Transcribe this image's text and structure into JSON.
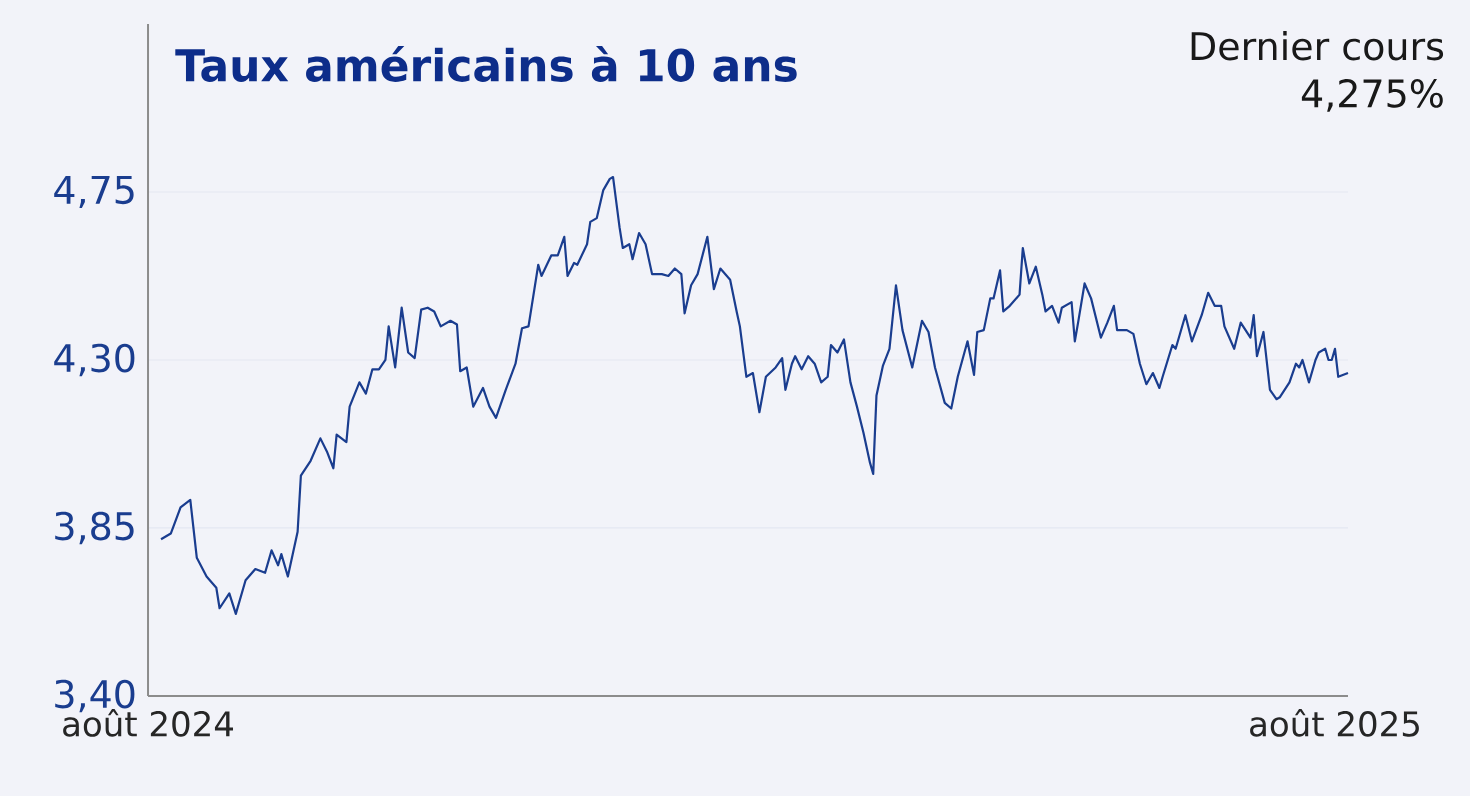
{
  "chart_data": {
    "type": "line",
    "title": "Taux américains à 10 ans",
    "annotations": [
      "Dernier cours",
      "4,275%"
    ],
    "x": [
      "2024-08-05",
      "2024-08-08",
      "2024-08-11",
      "2024-08-14",
      "2024-08-16",
      "2024-08-19",
      "2024-08-22",
      "2024-08-23",
      "2024-08-26",
      "2024-08-28",
      "2024-08-31",
      "2024-09-03",
      "2024-09-06",
      "2024-09-08",
      "2024-09-10",
      "2024-09-11",
      "2024-09-13",
      "2024-09-16",
      "2024-09-17",
      "2024-09-20",
      "2024-09-23",
      "2024-09-25",
      "2024-09-27",
      "2024-09-28",
      "2024-10-01",
      "2024-10-02",
      "2024-10-05",
      "2024-10-07",
      "2024-10-09",
      "2024-10-11",
      "2024-10-13",
      "2024-10-14",
      "2024-10-16",
      "2024-10-18",
      "2024-10-20",
      "2024-10-22",
      "2024-10-24",
      "2024-10-26",
      "2024-10-28",
      "2024-10-30",
      "2024-11-02",
      "2024-11-04",
      "2024-11-05",
      "2024-11-07",
      "2024-11-09",
      "2024-11-12",
      "2024-11-14",
      "2024-11-16",
      "2024-11-19",
      "2024-11-22",
      "2024-11-24",
      "2024-11-26",
      "2024-11-29",
      "2024-11-30",
      "2024-12-03",
      "2024-12-05",
      "2024-12-07",
      "2024-12-08",
      "2024-12-10",
      "2024-12-11",
      "2024-12-14",
      "2024-12-15",
      "2024-12-17",
      "2024-12-19",
      "2024-12-21",
      "2024-12-22",
      "2024-12-24",
      "2024-12-25",
      "2024-12-27",
      "2024-12-28",
      "2024-12-30",
      "2025-01-01",
      "2025-01-03",
      "2025-01-06",
      "2025-01-08",
      "2025-01-10",
      "2025-01-12",
      "2025-01-13",
      "2025-01-15",
      "2025-01-17",
      "2025-01-20",
      "2025-01-21",
      "2025-01-22",
      "2025-01-24",
      "2025-01-27",
      "2025-01-29",
      "2025-01-30",
      "2025-02-01",
      "2025-02-03",
      "2025-02-05",
      "2025-02-07",
      "2025-02-10",
      "2025-02-12",
      "2025-02-13",
      "2025-02-15",
      "2025-02-16",
      "2025-02-18",
      "2025-02-20",
      "2025-02-22",
      "2025-02-24",
      "2025-02-26",
      "2025-02-27",
      "2025-03-01",
      "2025-03-03",
      "2025-03-05",
      "2025-03-07",
      "2025-03-09",
      "2025-03-11",
      "2025-03-12",
      "2025-03-13",
      "2025-03-15",
      "2025-03-17",
      "2025-03-19",
      "2025-03-21",
      "2025-03-24",
      "2025-03-27",
      "2025-03-29",
      "2025-03-31",
      "2025-04-03",
      "2025-04-05",
      "2025-04-07",
      "2025-04-10",
      "2025-04-12",
      "2025-04-13",
      "2025-04-15",
      "2025-04-17",
      "2025-04-18",
      "2025-04-20",
      "2025-04-21",
      "2025-04-23",
      "2025-04-26",
      "2025-04-27",
      "2025-04-29",
      "2025-05-01",
      "2025-05-03",
      "2025-05-04",
      "2025-05-06",
      "2025-05-08",
      "2025-05-09",
      "2025-05-12",
      "2025-05-13",
      "2025-05-14",
      "2025-05-16",
      "2025-05-18",
      "2025-05-21",
      "2025-05-23",
      "2025-05-25",
      "2025-05-26",
      "2025-05-29",
      "2025-05-31",
      "2025-06-02",
      "2025-06-04",
      "2025-06-06",
      "2025-06-08",
      "2025-06-09",
      "2025-06-12",
      "2025-06-13",
      "2025-06-16",
      "2025-06-18",
      "2025-06-21",
      "2025-06-23",
      "2025-06-25",
      "2025-06-27",
      "2025-06-28",
      "2025-07-01",
      "2025-07-03",
      "2025-07-06",
      "2025-07-07",
      "2025-07-08",
      "2025-07-10",
      "2025-07-12",
      "2025-07-14",
      "2025-07-15",
      "2025-07-18",
      "2025-07-20",
      "2025-07-21",
      "2025-07-22",
      "2025-07-24",
      "2025-07-26",
      "2025-07-27",
      "2025-07-29",
      "2025-07-30",
      "2025-07-31",
      "2025-08-01",
      "2025-08-02",
      "2025-08-05"
    ],
    "series": [
      {
        "color": "#1a3d8f",
        "values": [
          3.82,
          3.835,
          3.905,
          3.925,
          3.77,
          3.72,
          3.69,
          3.635,
          3.675,
          3.62,
          3.71,
          3.74,
          3.73,
          3.79,
          3.75,
          3.78,
          3.72,
          3.84,
          3.99,
          4.03,
          4.09,
          4.055,
          4.01,
          4.1,
          4.08,
          4.175,
          4.24,
          4.21,
          4.275,
          4.275,
          4.3,
          4.39,
          4.28,
          4.44,
          4.32,
          4.305,
          4.435,
          4.44,
          4.43,
          4.39,
          4.405,
          4.395,
          4.27,
          4.28,
          4.175,
          4.225,
          4.175,
          4.145,
          4.22,
          4.29,
          4.385,
          4.39,
          4.555,
          4.525,
          4.58,
          4.58,
          4.63,
          4.525,
          4.56,
          4.555,
          4.61,
          4.67,
          4.68,
          4.755,
          4.785,
          4.79,
          4.655,
          4.6,
          4.61,
          4.57,
          4.64,
          4.61,
          4.53,
          4.53,
          4.525,
          4.545,
          4.53,
          4.425,
          4.5,
          4.53,
          4.63,
          4.56,
          4.49,
          4.545,
          4.515,
          4.43,
          4.39,
          4.255,
          4.265,
          4.16,
          4.255,
          4.28,
          4.305,
          4.22,
          4.29,
          4.31,
          4.275,
          4.31,
          4.29,
          4.24,
          4.255,
          4.34,
          4.32,
          4.355,
          4.24,
          4.175,
          4.105,
          4.025,
          3.995,
          4.205,
          4.285,
          4.33,
          4.5,
          4.38,
          4.28,
          4.405,
          4.375,
          4.28,
          4.185,
          4.17,
          4.255,
          4.35,
          4.26,
          4.375,
          4.38,
          4.465,
          4.465,
          4.54,
          4.43,
          4.445,
          4.475,
          4.6,
          4.505,
          4.55,
          4.475,
          4.43,
          4.445,
          4.4,
          4.44,
          4.455,
          4.35,
          4.4,
          4.505,
          4.465,
          4.36,
          4.4,
          4.445,
          4.38,
          4.38,
          4.37,
          4.29,
          4.235,
          4.265,
          4.225,
          4.255,
          4.34,
          4.33,
          4.42,
          4.35,
          4.42,
          4.48,
          4.445,
          4.445,
          4.39,
          4.33,
          4.4,
          4.36,
          4.42,
          4.31,
          4.375,
          4.22,
          4.195,
          4.2,
          4.24,
          4.29,
          4.28,
          4.3,
          4.24,
          4.3,
          4.32,
          4.33,
          4.3,
          4.3,
          4.33,
          4.255,
          4.265
        ]
      }
    ],
    "xlim": [
      "2024-08-01",
      "2025-08-05"
    ],
    "xticks": [
      {
        "value": "2024-08-01",
        "label": "août 2024"
      },
      {
        "value": "2025-08-01",
        "label": "août 2025"
      }
    ],
    "ylim": [
      3.4,
      5.2
    ],
    "yticks": [
      {
        "value": 3.4,
        "label": "3,40"
      },
      {
        "value": 3.85,
        "label": "3,85"
      },
      {
        "value": 4.3,
        "label": "4,30"
      },
      {
        "value": 4.75,
        "label": "4,75"
      }
    ],
    "grid": "y",
    "marker": "none",
    "line_style": "solid"
  }
}
